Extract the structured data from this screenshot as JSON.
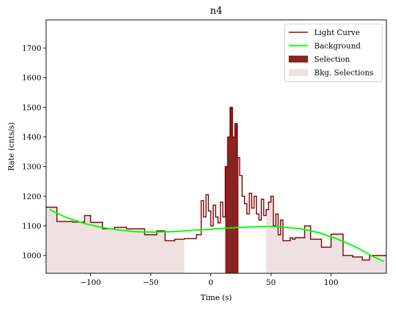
{
  "chart_data": {
    "type": "line",
    "title": "n4",
    "xlabel": "Time (s)",
    "ylabel": "Rate (cnts/s)",
    "xlim": [
      -137,
      146
    ],
    "ylim": [
      940,
      1795
    ],
    "xticks": [
      -100,
      -50,
      0,
      50,
      100
    ],
    "yticks": [
      1000,
      1100,
      1200,
      1300,
      1400,
      1500,
      1600,
      1700
    ],
    "xtick_labels": [
      "−100",
      "−50",
      "0",
      "50",
      "100"
    ],
    "ytick_labels": [
      "1000",
      "1100",
      "1200",
      "1300",
      "1400",
      "1500",
      "1600",
      "1700"
    ],
    "grid": false,
    "legend_position": "top-right",
    "legend": [
      {
        "label": "Light Curve",
        "kind": "line",
        "color": "#800000"
      },
      {
        "label": "Background",
        "kind": "line",
        "color": "#00ff00"
      },
      {
        "label": "Selection",
        "kind": "patch",
        "color": "#8b2323"
      },
      {
        "label": "Bkg. Selections",
        "kind": "patch",
        "color": "#efe0e1"
      }
    ],
    "colors": {
      "light_curve": "#800000",
      "background": "#00ff00",
      "selection": "#8b2323",
      "bkg_selection": "#efe0e1"
    },
    "light_curve": {
      "edges": [
        -137,
        -128,
        -115,
        -105,
        -100,
        -90,
        -80,
        -70,
        -55,
        -45,
        -38,
        -30,
        -22,
        -12,
        -8,
        -6,
        -4,
        -2,
        0,
        2,
        4,
        6,
        8,
        10,
        12,
        14,
        16,
        18,
        20,
        22,
        24,
        26,
        28,
        30,
        32,
        34,
        36,
        38,
        40,
        42,
        44,
        46,
        48,
        50,
        52,
        54,
        56,
        58,
        60,
        62,
        64,
        66,
        68,
        70,
        78,
        83,
        92,
        100,
        110,
        118,
        126,
        132,
        140,
        146
      ],
      "values": [
        1163,
        1115,
        1113,
        1135,
        1112,
        1090,
        1095,
        1090,
        1070,
        1083,
        1050,
        1055,
        1057,
        1070,
        1185,
        1130,
        1205,
        1150,
        1100,
        1170,
        1130,
        1110,
        1180,
        1130,
        1300,
        1400,
        1500,
        1400,
        1445,
        1330,
        1270,
        1200,
        1175,
        1140,
        1210,
        1160,
        1200,
        1140,
        1120,
        1190,
        1135,
        1155,
        1180,
        1200,
        1100,
        1140,
        1070,
        1120,
        1050,
        1050,
        1050,
        1060,
        1055,
        1060,
        1100,
        1055,
        1028,
        1072,
        1000,
        995,
        985,
        1000,
        1000
      ]
    },
    "background_model": {
      "x": [
        -134,
        -120,
        -105,
        -90,
        -75,
        -60,
        -45,
        -30,
        -15,
        0,
        15,
        30,
        45,
        60,
        75,
        90,
        105,
        120,
        135,
        144
      ],
      "y": [
        1155,
        1128,
        1108,
        1094,
        1085,
        1080,
        1079,
        1081,
        1085,
        1089,
        1093,
        1096,
        1098,
        1096,
        1090,
        1077,
        1056,
        1030,
        996,
        980
      ]
    },
    "selection_range": [
      12,
      23
    ],
    "bkg_selection_ranges": [
      [
        -137,
        -22
      ],
      [
        46,
        146
      ]
    ]
  }
}
